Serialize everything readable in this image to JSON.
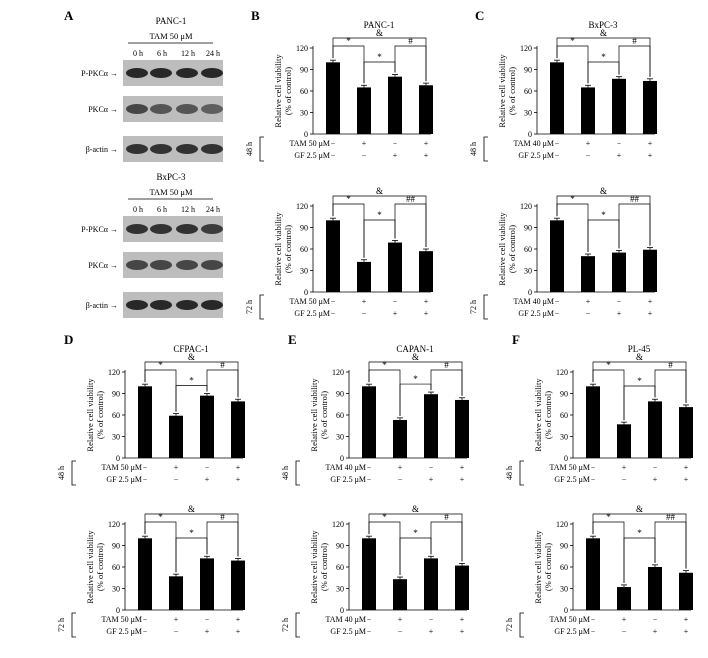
{
  "chart_data": [
    {
      "type": "blot",
      "panel": "A",
      "cell_line": "PANC-1",
      "treatment": "TAM 50 μM",
      "timepoints": [
        "0 h",
        "6 h",
        "12 h",
        "24 h"
      ],
      "bands": [
        "P-PKCα",
        "PKCα",
        "β-actin"
      ]
    },
    {
      "type": "blot",
      "panel": "A",
      "cell_line": "BxPC-3",
      "treatment": "TAM 50 μM",
      "timepoints": [
        "0 h",
        "6 h",
        "12 h",
        "24 h"
      ],
      "bands": [
        "P-PKCα",
        "PKCα",
        "β-actin"
      ]
    },
    {
      "type": "bar",
      "panel": "B",
      "title": "PANC-1",
      "time": "48 h",
      "row_labels": [
        "TAM 50 μM",
        "GF 2.5 μM"
      ],
      "conditions": [
        [
          "−",
          "−"
        ],
        [
          "+",
          "−"
        ],
        [
          "−",
          "+"
        ],
        [
          "+",
          "+"
        ]
      ],
      "values": [
        100,
        65,
        80,
        68
      ],
      "ylabel": "Relative cell viability",
      "ylabel2": "(% of control)",
      "ylim": [
        0,
        120
      ],
      "yticks": [
        "0",
        "30",
        "60",
        "90",
        "120"
      ],
      "brackets": [
        {
          "from": 0,
          "to": 1,
          "label": "*"
        },
        {
          "from": 1,
          "to": 2,
          "label": "*"
        },
        {
          "from": 2,
          "to": 3,
          "label": "#"
        },
        {
          "from": 0,
          "to": 3,
          "label": "&"
        }
      ]
    },
    {
      "type": "bar",
      "panel": "B",
      "title": "",
      "time": "72 h",
      "row_labels": [
        "TAM 50 μM",
        "GF 2.5 μM"
      ],
      "conditions": [
        [
          "−",
          "−"
        ],
        [
          "+",
          "−"
        ],
        [
          "−",
          "+"
        ],
        [
          "+",
          "+"
        ]
      ],
      "values": [
        100,
        42,
        69,
        57
      ],
      "ylabel": "Relative cell viability",
      "ylabel2": "(% of control)",
      "ylim": [
        0,
        120
      ],
      "yticks": [
        "0",
        "30",
        "60",
        "90",
        "120"
      ],
      "brackets": [
        {
          "from": 0,
          "to": 1,
          "label": "*"
        },
        {
          "from": 1,
          "to": 2,
          "label": "*"
        },
        {
          "from": 2,
          "to": 3,
          "label": "##"
        },
        {
          "from": 0,
          "to": 3,
          "label": "&"
        }
      ]
    },
    {
      "type": "bar",
      "panel": "C",
      "title": "BxPC-3",
      "time": "48 h",
      "row_labels": [
        "TAM 40 μM",
        "GF 2.5 μM"
      ],
      "conditions": [
        [
          "−",
          "−"
        ],
        [
          "+",
          "−"
        ],
        [
          "−",
          "+"
        ],
        [
          "+",
          "+"
        ]
      ],
      "values": [
        100,
        65,
        77,
        74
      ],
      "ylabel": "Relative cell viability",
      "ylabel2": "(% of control)",
      "ylim": [
        0,
        120
      ],
      "yticks": [
        "0",
        "30",
        "60",
        "90",
        "120"
      ],
      "brackets": [
        {
          "from": 0,
          "to": 1,
          "label": "*"
        },
        {
          "from": 1,
          "to": 2,
          "label": "*"
        },
        {
          "from": 2,
          "to": 3,
          "label": "#"
        },
        {
          "from": 0,
          "to": 3,
          "label": "&"
        }
      ]
    },
    {
      "type": "bar",
      "panel": "C",
      "title": "",
      "time": "72 h",
      "row_labels": [
        "TAM 40 μM",
        "GF 2.5 μM"
      ],
      "conditions": [
        [
          "−",
          "−"
        ],
        [
          "+",
          "−"
        ],
        [
          "−",
          "+"
        ],
        [
          "+",
          "+"
        ]
      ],
      "values": [
        100,
        50,
        55,
        59
      ],
      "ylabel": "Relative cell viability",
      "ylabel2": "(% of control)",
      "ylim": [
        0,
        120
      ],
      "yticks": [
        "0",
        "30",
        "60",
        "90",
        "120"
      ],
      "brackets": [
        {
          "from": 0,
          "to": 1,
          "label": "*"
        },
        {
          "from": 1,
          "to": 2,
          "label": "*"
        },
        {
          "from": 2,
          "to": 3,
          "label": "##"
        },
        {
          "from": 0,
          "to": 3,
          "label": "&"
        }
      ]
    },
    {
      "type": "bar",
      "panel": "D",
      "title": "CFPAC-1",
      "time": "48 h",
      "row_labels": [
        "TAM 50 μM",
        "GF 2.5 μM"
      ],
      "conditions": [
        [
          "−",
          "−"
        ],
        [
          "+",
          "−"
        ],
        [
          "−",
          "+"
        ],
        [
          "+",
          "+"
        ]
      ],
      "values": [
        100,
        59,
        87,
        79
      ],
      "ylabel": "Relative cell viability",
      "ylabel2": "(% of control)",
      "ylim": [
        0,
        120
      ],
      "yticks": [
        "0",
        "30",
        "60",
        "90",
        "120"
      ],
      "brackets": [
        {
          "from": 0,
          "to": 1,
          "label": "*"
        },
        {
          "from": 1,
          "to": 2,
          "label": "*"
        },
        {
          "from": 2,
          "to": 3,
          "label": "#"
        },
        {
          "from": 0,
          "to": 3,
          "label": "&"
        }
      ]
    },
    {
      "type": "bar",
      "panel": "D",
      "title": "",
      "time": "72 h",
      "row_labels": [
        "TAM 50 μM",
        "GF 2.5 μM"
      ],
      "conditions": [
        [
          "−",
          "−"
        ],
        [
          "+",
          "−"
        ],
        [
          "−",
          "+"
        ],
        [
          "+",
          "+"
        ]
      ],
      "values": [
        100,
        47,
        72,
        69
      ],
      "ylabel": "Relative cell viability",
      "ylabel2": "(% of control)",
      "ylim": [
        0,
        120
      ],
      "yticks": [
        "0",
        "30",
        "60",
        "90",
        "120"
      ],
      "brackets": [
        {
          "from": 0,
          "to": 1,
          "label": "*"
        },
        {
          "from": 1,
          "to": 2,
          "label": "*"
        },
        {
          "from": 2,
          "to": 3,
          "label": "#"
        },
        {
          "from": 0,
          "to": 3,
          "label": "&"
        }
      ]
    },
    {
      "type": "bar",
      "panel": "E",
      "title": "CAPAN-1",
      "time": "48 h",
      "row_labels": [
        "TAM 40 μM",
        "GF 2.5 μM"
      ],
      "conditions": [
        [
          "−",
          "−"
        ],
        [
          "+",
          "−"
        ],
        [
          "−",
          "+"
        ],
        [
          "+",
          "+"
        ]
      ],
      "values": [
        100,
        53,
        89,
        81
      ],
      "ylabel": "Relative cell viability",
      "ylabel2": "(% of control)",
      "ylim": [
        0,
        120
      ],
      "yticks": [
        "0",
        "30",
        "60",
        "90",
        "120"
      ],
      "brackets": [
        {
          "from": 0,
          "to": 1,
          "label": "*"
        },
        {
          "from": 1,
          "to": 2,
          "label": "*"
        },
        {
          "from": 2,
          "to": 3,
          "label": "#"
        },
        {
          "from": 0,
          "to": 3,
          "label": "&"
        }
      ]
    },
    {
      "type": "bar",
      "panel": "E",
      "title": "",
      "time": "72 h",
      "row_labels": [
        "TAM 40 μM",
        "GF 2.5 μM"
      ],
      "conditions": [
        [
          "−",
          "−"
        ],
        [
          "+",
          "−"
        ],
        [
          "−",
          "+"
        ],
        [
          "+",
          "+"
        ]
      ],
      "values": [
        100,
        43,
        72,
        62
      ],
      "ylabel": "Relative cell viability",
      "ylabel2": "(% of control)",
      "ylim": [
        0,
        120
      ],
      "yticks": [
        "0",
        "30",
        "60",
        "90",
        "120"
      ],
      "brackets": [
        {
          "from": 0,
          "to": 1,
          "label": "*"
        },
        {
          "from": 1,
          "to": 2,
          "label": "*"
        },
        {
          "from": 2,
          "to": 3,
          "label": "#"
        },
        {
          "from": 0,
          "to": 3,
          "label": "&"
        }
      ]
    },
    {
      "type": "bar",
      "panel": "F",
      "title": "PL-45",
      "time": "48 h",
      "row_labels": [
        "TAM 50 μM",
        "GF 2.5 μM"
      ],
      "conditions": [
        [
          "−",
          "−"
        ],
        [
          "+",
          "−"
        ],
        [
          "−",
          "+"
        ],
        [
          "+",
          "+"
        ]
      ],
      "values": [
        100,
        47,
        79,
        71
      ],
      "ylabel": "Relative cell viability",
      "ylabel2": "(% of control)",
      "ylim": [
        0,
        120
      ],
      "yticks": [
        "0",
        "30",
        "60",
        "90",
        "120"
      ],
      "brackets": [
        {
          "from": 0,
          "to": 1,
          "label": "*"
        },
        {
          "from": 1,
          "to": 2,
          "label": "*"
        },
        {
          "from": 2,
          "to": 3,
          "label": "#"
        },
        {
          "from": 0,
          "to": 3,
          "label": "&"
        }
      ]
    },
    {
      "type": "bar",
      "panel": "F",
      "title": "",
      "time": "72 h",
      "row_labels": [
        "TAM 50 μM",
        "GF 2.5 μM"
      ],
      "conditions": [
        [
          "−",
          "−"
        ],
        [
          "+",
          "−"
        ],
        [
          "−",
          "+"
        ],
        [
          "+",
          "+"
        ]
      ],
      "values": [
        100,
        32,
        60,
        52
      ],
      "ylabel": "Relative cell viability",
      "ylabel2": "(% of control)",
      "ylim": [
        0,
        120
      ],
      "yticks": [
        "0",
        "30",
        "60",
        "90",
        "120"
      ],
      "brackets": [
        {
          "from": 0,
          "to": 1,
          "label": "*"
        },
        {
          "from": 1,
          "to": 2,
          "label": "*"
        },
        {
          "from": 2,
          "to": 3,
          "label": "##"
        },
        {
          "from": 0,
          "to": 3,
          "label": "&"
        }
      ]
    }
  ]
}
